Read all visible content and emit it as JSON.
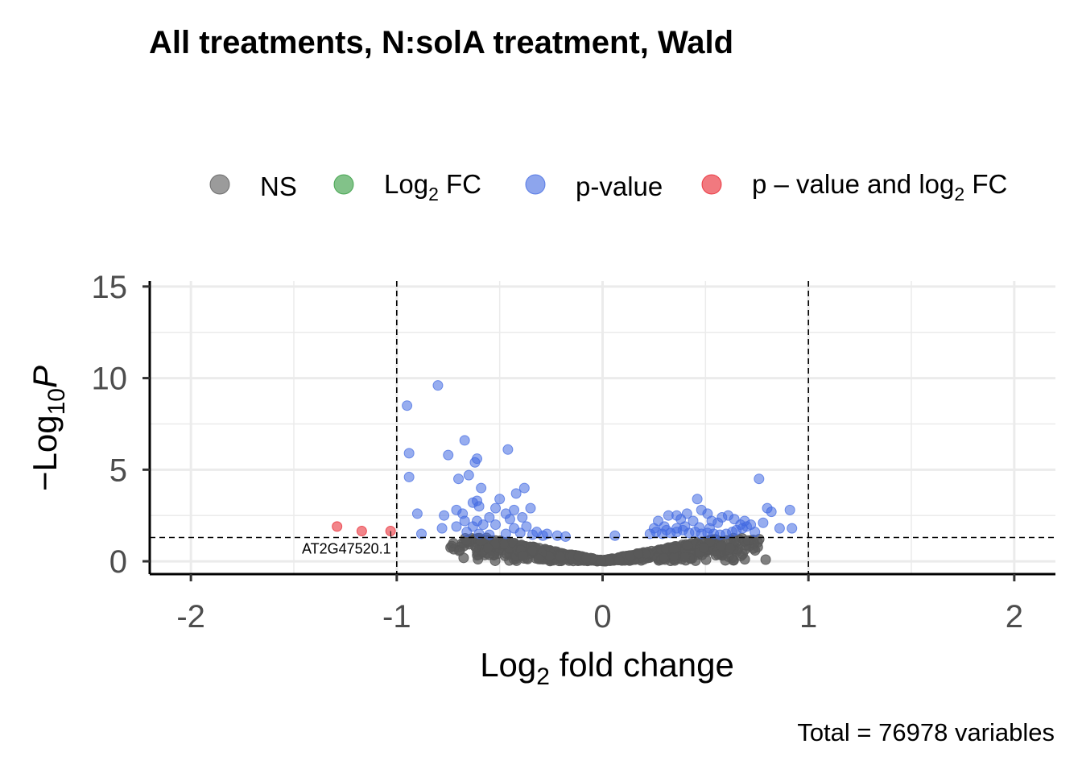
{
  "chart_data": {
    "type": "scatter",
    "title": "All treatments, N:solA treatment, Wald",
    "xlabel_main": "Log",
    "xlabel_sub": "2",
    "xlabel_rest": " fold change",
    "ylabel_main": "−Log",
    "ylabel_sub": "10",
    "ylabel_p": "P",
    "caption": "Total = 76978 variables",
    "xlim": [
      -2.2,
      2.2
    ],
    "ylim": [
      -0.7,
      15.3
    ],
    "x_ticks": [
      -2,
      -1,
      0,
      1,
      2
    ],
    "x_tick_labels": [
      "-2",
      "-1",
      "0",
      "1",
      "2"
    ],
    "y_ticks": [
      0,
      5,
      10,
      15
    ],
    "y_tick_labels": [
      "0",
      "5",
      "10",
      "15"
    ],
    "grid": true,
    "fc_cutoffs": [
      -1,
      1
    ],
    "p_cutoff": 1.3,
    "legend_position": "top",
    "legend": [
      {
        "key": "ns",
        "label": "NS",
        "color": "#595959"
      },
      {
        "key": "fc",
        "label_main": "Log",
        "label_sub": "2",
        "label_rest": " FC",
        "color": "#2e9a3b"
      },
      {
        "key": "p",
        "label": "p-value",
        "color": "#4169e1"
      },
      {
        "key": "pfc",
        "label_main": "p – value and log",
        "label_sub": "2",
        "label_rest": " FC",
        "color": "#e8202a"
      }
    ],
    "colors": {
      "ns": "#595959",
      "fc": "#2e9a3b",
      "p": "#4169e1",
      "pfc": "#e8202a"
    },
    "label_annotation": {
      "text": "AT2G47520.1",
      "x": -1.02,
      "y": 1.6
    },
    "series": [
      {
        "name": "p – value and log2 FC",
        "color_key": "pfc",
        "points": [
          [
            -1.29,
            1.9
          ],
          [
            -1.17,
            1.65
          ],
          [
            -1.03,
            1.65
          ]
        ]
      },
      {
        "name": "p-value",
        "color_key": "p",
        "points": [
          [
            -0.95,
            8.5
          ],
          [
            -0.8,
            9.6
          ],
          [
            -0.94,
            5.9
          ],
          [
            -0.94,
            4.6
          ],
          [
            -0.67,
            6.6
          ],
          [
            -0.75,
            5.8
          ],
          [
            -0.61,
            5.6
          ],
          [
            -0.62,
            5.4
          ],
          [
            -0.46,
            6.1
          ],
          [
            -0.65,
            4.7
          ],
          [
            -0.7,
            4.5
          ],
          [
            -0.59,
            4.0
          ],
          [
            -0.38,
            4.0
          ],
          [
            -0.5,
            3.4
          ],
          [
            -0.42,
            3.7
          ],
          [
            -0.61,
            3.3
          ],
          [
            -0.63,
            3.2
          ],
          [
            -0.6,
            3.0
          ],
          [
            -0.52,
            2.9
          ],
          [
            -0.43,
            2.8
          ],
          [
            -0.35,
            2.9
          ],
          [
            -0.47,
            2.6
          ],
          [
            -0.68,
            2.6
          ],
          [
            -0.71,
            2.8
          ],
          [
            -0.9,
            2.6
          ],
          [
            -0.77,
            2.5
          ],
          [
            -0.55,
            2.4
          ],
          [
            -0.45,
            2.3
          ],
          [
            -0.39,
            2.4
          ],
          [
            -0.61,
            2.2
          ],
          [
            -0.67,
            2.2
          ],
          [
            -0.58,
            2.0
          ],
          [
            -0.52,
            2.0
          ],
          [
            -0.63,
            1.9
          ],
          [
            -0.37,
            1.9
          ],
          [
            -0.43,
            1.8
          ],
          [
            -0.71,
            1.9
          ],
          [
            -0.78,
            1.8
          ],
          [
            -0.88,
            1.5
          ],
          [
            -0.32,
            1.6
          ],
          [
            -0.27,
            1.5
          ],
          [
            -0.22,
            1.4
          ],
          [
            -0.18,
            1.35
          ],
          [
            -0.6,
            1.5
          ],
          [
            -0.66,
            1.6
          ],
          [
            -0.55,
            1.45
          ],
          [
            -0.47,
            1.5
          ],
          [
            -0.4,
            1.55
          ],
          [
            -0.34,
            1.45
          ],
          [
            -0.29,
            1.4
          ],
          [
            0.06,
            1.4
          ],
          [
            0.23,
            1.5
          ],
          [
            0.26,
            1.6
          ],
          [
            0.29,
            1.5
          ],
          [
            0.31,
            1.7
          ],
          [
            0.33,
            1.55
          ],
          [
            0.36,
            1.6
          ],
          [
            0.39,
            1.7
          ],
          [
            0.42,
            1.55
          ],
          [
            0.45,
            1.6
          ],
          [
            0.48,
            1.5
          ],
          [
            0.51,
            1.55
          ],
          [
            0.54,
            1.5
          ],
          [
            0.57,
            1.45
          ],
          [
            0.6,
            1.5
          ],
          [
            0.63,
            1.6
          ],
          [
            0.65,
            1.7
          ],
          [
            0.68,
            1.8
          ],
          [
            0.7,
            1.9
          ],
          [
            0.72,
            2.0
          ],
          [
            0.74,
            1.6
          ],
          [
            0.27,
            2.2
          ],
          [
            0.32,
            2.5
          ],
          [
            0.36,
            2.5
          ],
          [
            0.38,
            2.3
          ],
          [
            0.41,
            2.6
          ],
          [
            0.44,
            2.2
          ],
          [
            0.46,
            3.4
          ],
          [
            0.48,
            2.8
          ],
          [
            0.51,
            2.6
          ],
          [
            0.53,
            2.2
          ],
          [
            0.56,
            2.1
          ],
          [
            0.58,
            2.4
          ],
          [
            0.61,
            2.5
          ],
          [
            0.64,
            2.3
          ],
          [
            0.67,
            2.0
          ],
          [
            0.69,
            2.2
          ],
          [
            0.76,
            4.5
          ],
          [
            0.8,
            2.9
          ],
          [
            0.82,
            2.7
          ],
          [
            0.86,
            1.8
          ],
          [
            0.91,
            2.8
          ],
          [
            0.92,
            1.8
          ],
          [
            0.78,
            2.1
          ],
          [
            0.4,
            1.9
          ],
          [
            0.36,
            1.8
          ],
          [
            0.3,
            1.9
          ],
          [
            0.25,
            1.8
          ],
          [
            0.47,
            1.85
          ],
          [
            0.52,
            1.8
          ]
        ]
      }
    ]
  }
}
